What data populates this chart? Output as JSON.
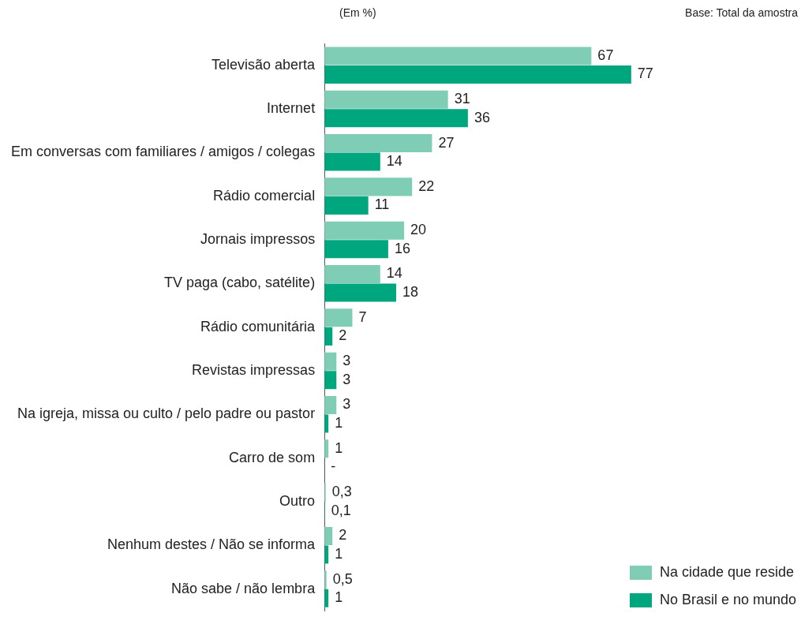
{
  "chart_data": {
    "type": "bar",
    "orientation": "horizontal",
    "annotations": [
      "(Em %)",
      "Base: Total da amostra"
    ],
    "categories": [
      "Televisão aberta",
      "Internet",
      "Em conversas com familiares / amigos / colegas",
      "Rádio comercial",
      "Jornais impressos",
      "TV paga (cabo, satélite)",
      "Rádio comunitária",
      "Revistas impressas",
      "Na igreja, missa ou culto / pelo padre ou pastor",
      "Carro de som",
      "Outro",
      "Nenhum destes / Não se informa",
      "Não sabe / não lembra"
    ],
    "series": [
      {
        "name": "Na cidade que reside",
        "color": "#7fcdb5",
        "values": [
          67,
          31,
          27,
          22,
          20,
          14,
          7,
          3,
          3,
          1,
          0.3,
          2,
          0.5
        ],
        "value_labels": [
          "67",
          "31",
          "27",
          "22",
          "20",
          "14",
          "7",
          "3",
          "3",
          "1",
          "0,3",
          "2",
          "0,5"
        ]
      },
      {
        "name": "No Brasil e no mundo",
        "color": "#00a67e",
        "values": [
          77,
          36,
          14,
          11,
          16,
          18,
          2,
          3,
          1,
          null,
          0.1,
          1,
          1
        ],
        "value_labels": [
          "77",
          "36",
          "14",
          "11",
          "16",
          "18",
          "2",
          "3",
          "1",
          "-",
          "0,1",
          "1",
          "1"
        ]
      }
    ],
    "legend": "bottom right"
  }
}
